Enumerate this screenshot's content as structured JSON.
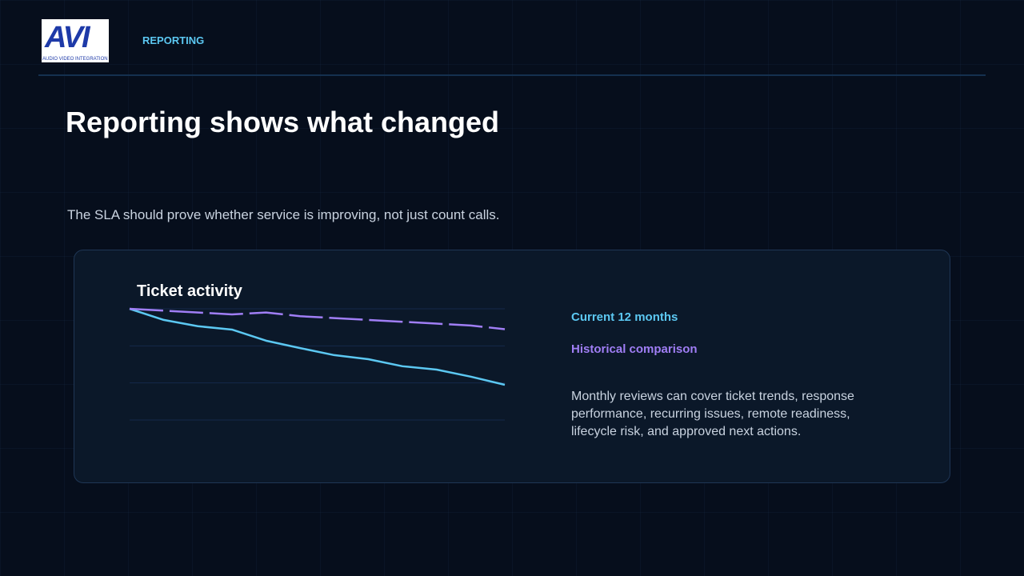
{
  "logo": {
    "text": "AVI",
    "subtext": "AUDIO VIDEO INTEGRATION"
  },
  "header": {
    "section": "REPORTING"
  },
  "slide": {
    "title": "Reporting shows what changed",
    "subtitle": "The SLA should prove whether service is improving, not just count calls.",
    "body": "Monthly reviews can cover ticket trends, response performance, recurring issues, remote readiness, lifecycle risk, and approved next actions."
  },
  "chart_data": {
    "type": "line",
    "title": "Ticket activity",
    "categories": [
      null,
      null,
      null,
      null,
      null,
      null,
      null,
      null,
      null,
      null,
      null,
      null
    ],
    "series": [
      {
        "name": "Current 12 months",
        "color": "#5cc8f2",
        "values": [
          3.0,
          2.7,
          2.53,
          2.44,
          2.14,
          1.94,
          1.75,
          1.64,
          1.45,
          1.36,
          1.17,
          0.95
        ]
      },
      {
        "name": "Historical comparison",
        "color": "#a07ef5",
        "dashed": true,
        "values": [
          3.0,
          2.95,
          2.9,
          2.85,
          2.9,
          2.8,
          2.75,
          2.7,
          2.65,
          2.6,
          2.55,
          2.45
        ]
      }
    ],
    "ylim": [
      0,
      3
    ],
    "yticks": [
      0,
      1,
      2,
      3
    ],
    "grid": true
  }
}
